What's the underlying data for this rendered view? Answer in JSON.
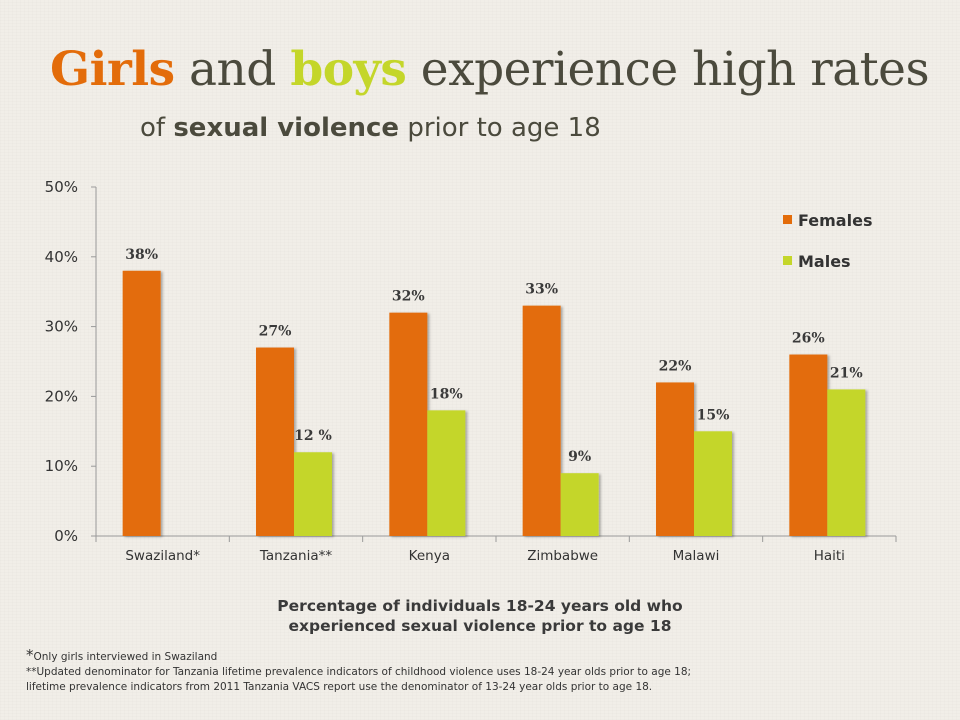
{
  "title": {
    "girls": "Girls",
    "and": " and ",
    "boys": "boys",
    "rest": " experience high rates",
    "line2_pre": "of ",
    "line2_bold": "sexual violence",
    "line2_post": " prior to age 18"
  },
  "caption": {
    "line1": "Percentage of individuals 18-24 years old who",
    "line2": "experienced sexual violence prior to age 18"
  },
  "footnotes": {
    "star": "*",
    "note1": "Only girls interviewed in Swaziland",
    "note2": "**Updated denominator for Tanzania lifetime prevalence indicators of childhood violence uses 18-24 year olds prior to age 18;",
    "note3": "lifetime prevalence indicators from 2011 Tanzania VACS report use the denominator of 13-24 year olds prior to age 18."
  },
  "colors": {
    "females": "#e36c0a",
    "males": "#c4d62a",
    "title_text": "#4b4a3d"
  },
  "chart_data": {
    "type": "bar",
    "categories": [
      "Swaziland*",
      "Tanzania**",
      "Kenya",
      "Zimbabwe",
      "Malawi",
      "Haiti"
    ],
    "series": [
      {
        "name": "Females",
        "values": [
          38,
          27,
          32,
          33,
          22,
          26
        ],
        "labels": [
          "38%",
          "27%",
          "32%",
          "33%",
          "22%",
          "26%"
        ]
      },
      {
        "name": "Males",
        "values": [
          null,
          12,
          18,
          9,
          15,
          21
        ],
        "labels": [
          null,
          "12 %",
          "18%",
          "9%",
          "15%",
          "21%"
        ]
      }
    ],
    "yticks": [
      "0%",
      "10%",
      "20%",
      "30%",
      "40%",
      "50%"
    ],
    "ylim": [
      0,
      50
    ],
    "legend_position": "top-right",
    "grid": false
  }
}
